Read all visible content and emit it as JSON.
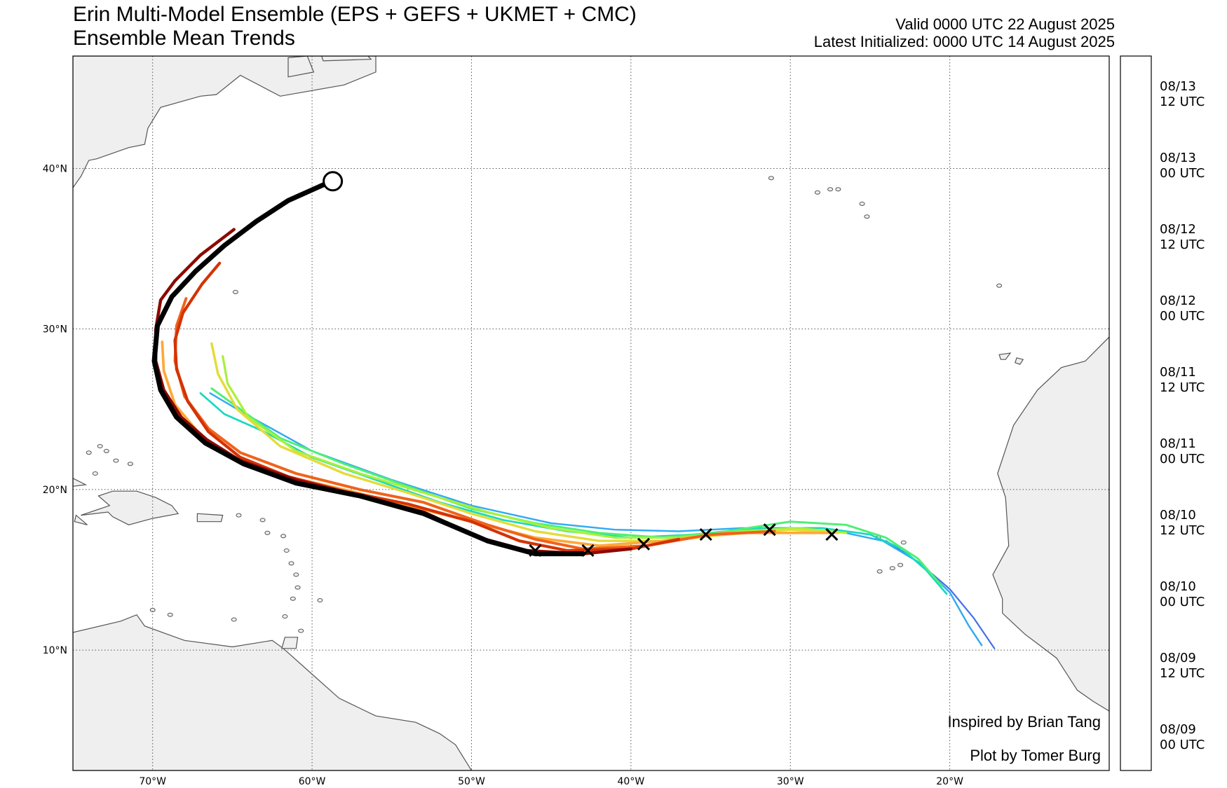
{
  "header": {
    "title": "Erin Multi-Model Ensemble (EPS + GEFS + UKMET + CMC)",
    "subtitle": "Ensemble Mean Trends",
    "valid": "Valid 0000 UTC 22 August 2025",
    "initialized": "Latest Initialized: 0000 UTC 14 August 2025"
  },
  "map": {
    "lon_range": [
      -75,
      -10
    ],
    "lat_range": [
      2.5,
      47
    ],
    "lon_ticks": [
      {
        "value": -70,
        "label": "70°W"
      },
      {
        "value": -60,
        "label": "60°W"
      },
      {
        "value": -50,
        "label": "50°W"
      },
      {
        "value": -40,
        "label": "40°W"
      },
      {
        "value": -30,
        "label": "30°W"
      },
      {
        "value": -20,
        "label": "20°W"
      }
    ],
    "lat_ticks": [
      {
        "value": 10,
        "label": "10°N"
      },
      {
        "value": 20,
        "label": "20°N"
      },
      {
        "value": 30,
        "label": "30°N"
      },
      {
        "value": 40,
        "label": "40°N"
      }
    ],
    "gridlines": "dotted",
    "land_color": "#efefef",
    "coast_color": "#555555",
    "ocean_color": "#ffffff",
    "land": [
      {
        "name": "north-america",
        "points": [
          [
            -75,
            47
          ],
          [
            -56,
            47
          ],
          [
            -56,
            46
          ],
          [
            -58,
            45.2
          ],
          [
            -62,
            44.5
          ],
          [
            -64.5,
            45.8
          ],
          [
            -66,
            44.6
          ],
          [
            -67,
            44.5
          ],
          [
            -69.5,
            43.8
          ],
          [
            -70.3,
            42.5
          ],
          [
            -70.5,
            41.5
          ],
          [
            -71.5,
            41.3
          ],
          [
            -73.5,
            40.6
          ],
          [
            -74,
            40.5
          ],
          [
            -74.5,
            39.5
          ],
          [
            -75,
            38.8
          ]
        ]
      },
      {
        "name": "south-america",
        "points": [
          [
            -75,
            11.1
          ],
          [
            -72,
            11.8
          ],
          [
            -71,
            12.2
          ],
          [
            -70.5,
            11.5
          ],
          [
            -68,
            10.6
          ],
          [
            -65,
            10.2
          ],
          [
            -62.5,
            10.6
          ],
          [
            -61.8,
            10.1
          ],
          [
            -60,
            8.5
          ],
          [
            -58.3,
            7
          ],
          [
            -56,
            5.9
          ],
          [
            -53.5,
            5.5
          ],
          [
            -52,
            4.8
          ],
          [
            -51,
            4.1
          ],
          [
            -50,
            2.5
          ],
          [
            -75,
            2.5
          ]
        ]
      },
      {
        "name": "africa",
        "points": [
          [
            -10,
            29.5
          ],
          [
            -11.5,
            28
          ],
          [
            -13,
            27.6
          ],
          [
            -14.5,
            26.2
          ],
          [
            -16,
            24
          ],
          [
            -17,
            21
          ],
          [
            -16.5,
            19.5
          ],
          [
            -16.3,
            16.5
          ],
          [
            -17.3,
            14.7
          ],
          [
            -16.7,
            13.2
          ],
          [
            -16.7,
            12.3
          ],
          [
            -15.3,
            11
          ],
          [
            -14.5,
            10.4
          ],
          [
            -13.3,
            9.5
          ],
          [
            -12,
            7.5
          ],
          [
            -11,
            6.8
          ],
          [
            -10,
            6.2
          ]
        ]
      },
      {
        "name": "cuba",
        "points": [
          [
            -75,
            20.2
          ],
          [
            -74.2,
            20.3
          ],
          [
            -75,
            20.7
          ]
        ]
      },
      {
        "name": "hispaniola",
        "points": [
          [
            -74.5,
            18.4
          ],
          [
            -72.8,
            18.6
          ],
          [
            -72.5,
            18.3
          ],
          [
            -71.5,
            17.8
          ],
          [
            -70,
            18.2
          ],
          [
            -68.4,
            18.5
          ],
          [
            -68.8,
            19
          ],
          [
            -69.8,
            19.5
          ],
          [
            -71,
            19.9
          ],
          [
            -72.5,
            19.9
          ],
          [
            -73.4,
            19.6
          ],
          [
            -72.7,
            19
          ]
        ]
      },
      {
        "name": "puerto-rico",
        "points": [
          [
            -67.2,
            18.5
          ],
          [
            -65.6,
            18.4
          ],
          [
            -65.7,
            18
          ],
          [
            -67.2,
            18
          ]
        ]
      },
      {
        "name": "jamaica",
        "points": [
          [
            -74.9,
            18
          ],
          [
            -74.1,
            17.8
          ],
          [
            -74.8,
            18.4
          ]
        ]
      },
      {
        "name": "trinidad",
        "points": [
          [
            -61.9,
            10.1
          ],
          [
            -61,
            10.1
          ],
          [
            -60.9,
            10.8
          ],
          [
            -61.7,
            10.8
          ]
        ]
      },
      {
        "name": "newfoundland",
        "points": [
          [
            -59.4,
            47
          ],
          [
            -56.5,
            47
          ],
          [
            -56.3,
            46.8
          ],
          [
            -59.3,
            46.7
          ]
        ]
      },
      {
        "name": "cape-breton",
        "points": [
          [
            -61.5,
            45.7
          ],
          [
            -59.9,
            46
          ],
          [
            -60.3,
            47
          ],
          [
            -61.5,
            46.9
          ]
        ]
      },
      {
        "name": "gran-canaria",
        "points": [
          [
            -15.8,
            28.2
          ],
          [
            -15.4,
            28.1
          ],
          [
            -15.6,
            27.8
          ],
          [
            -15.9,
            27.9
          ]
        ]
      },
      {
        "name": "tenerife",
        "points": [
          [
            -16.9,
            28.4
          ],
          [
            -16.2,
            28.5
          ],
          [
            -16.5,
            28.1
          ],
          [
            -16.8,
            28.1
          ]
        ]
      }
    ],
    "small_islands": [
      [
        -64.8,
        32.3
      ],
      [
        -31.2,
        39.4
      ],
      [
        -28.3,
        38.5
      ],
      [
        -27.5,
        38.7
      ],
      [
        -27,
        38.7
      ],
      [
        -25.5,
        37.8
      ],
      [
        -25.2,
        37.0
      ],
      [
        -16.9,
        32.7
      ],
      [
        -24.5,
        17.0
      ],
      [
        -22.9,
        16.7
      ],
      [
        -23.6,
        15.1
      ],
      [
        -24.4,
        14.9
      ],
      [
        -23.1,
        15.3
      ],
      [
        -61.8,
        17.1
      ],
      [
        -61.6,
        16.2
      ],
      [
        -61.3,
        15.4
      ],
      [
        -61.0,
        14.7
      ],
      [
        -60.9,
        13.9
      ],
      [
        -61.2,
        13.2
      ],
      [
        -59.5,
        13.1
      ],
      [
        -61.7,
        12.1
      ],
      [
        -60.7,
        11.2
      ],
      [
        -62.8,
        17.3
      ],
      [
        -63.1,
        18.1
      ],
      [
        -64.6,
        18.4
      ],
      [
        -68.9,
        12.2
      ],
      [
        -70.0,
        12.5
      ],
      [
        -64.9,
        11.9
      ],
      [
        -72.3,
        21.8
      ],
      [
        -71.4,
        21.6
      ],
      [
        -73.6,
        21.0
      ],
      [
        -72.9,
        22.4
      ],
      [
        -73.3,
        22.7
      ],
      [
        -74.0,
        22.3
      ]
    ]
  },
  "track_colors": [
    {
      "time": "08/09 00 UTC",
      "color": "#4570e8"
    },
    {
      "time": "08/09 12 UTC",
      "color": "#33aaf2"
    },
    {
      "time": "08/10 00 UTC",
      "color": "#19d9c0"
    },
    {
      "time": "08/10 12 UTC",
      "color": "#4df074"
    },
    {
      "time": "08/11 00 UTC",
      "color": "#a8f03c"
    },
    {
      "time": "08/11 12 UTC",
      "color": "#e3dc3a"
    },
    {
      "time": "08/12 00 UTC",
      "color": "#ffa838"
    },
    {
      "time": "08/12 12 UTC",
      "color": "#f1621b"
    },
    {
      "time": "08/13 00 UTC",
      "color": "#d33306"
    },
    {
      "time": "08/13 12 UTC",
      "color": "#8b0a00"
    }
  ],
  "colorbar": {
    "labels": [
      {
        "date": "08/09",
        "hour": "00 UTC"
      },
      {
        "date": "08/09",
        "hour": "12 UTC"
      },
      {
        "date": "08/10",
        "hour": "00 UTC"
      },
      {
        "date": "08/10",
        "hour": "12 UTC"
      },
      {
        "date": "08/11",
        "hour": "00 UTC"
      },
      {
        "date": "08/11",
        "hour": "12 UTC"
      },
      {
        "date": "08/12",
        "hour": "00 UTC"
      },
      {
        "date": "08/12",
        "hour": "12 UTC"
      },
      {
        "date": "08/13",
        "hour": "00 UTC"
      },
      {
        "date": "08/13",
        "hour": "12 UTC"
      }
    ]
  },
  "tracks": [
    {
      "init": "08/09 00 UTC",
      "color": "#4570e8",
      "points": [
        [
          -24,
          16.8
        ],
        [
          -22,
          15.5
        ],
        [
          -20,
          13.8
        ],
        [
          -18.5,
          12.0
        ],
        [
          -17.2,
          10.1
        ]
      ]
    },
    {
      "init": "08/09 12 UTC",
      "color": "#33aaf2",
      "points": [
        [
          -66.4,
          26.0
        ],
        [
          -64,
          24.6
        ],
        [
          -60,
          22.4
        ],
        [
          -55,
          20.6
        ],
        [
          -50,
          19.0
        ],
        [
          -45,
          17.9
        ],
        [
          -41,
          17.5
        ],
        [
          -37,
          17.4
        ],
        [
          -33,
          17.6
        ],
        [
          -30,
          17.5
        ],
        [
          -27,
          17.4
        ],
        [
          -24.2,
          16.8
        ],
        [
          -22,
          15.5
        ],
        [
          -20,
          13.6
        ],
        [
          -18.8,
          11.5
        ],
        [
          -18.0,
          10.3
        ]
      ]
    },
    {
      "init": "08/10 00 UTC",
      "color": "#19d9c0",
      "points": [
        [
          -67.0,
          26.0
        ],
        [
          -65.5,
          24.7
        ],
        [
          -63,
          23.6
        ],
        [
          -60,
          22.0
        ],
        [
          -56,
          20.6
        ],
        [
          -52,
          19.2
        ],
        [
          -48,
          18.1
        ],
        [
          -44,
          17.4
        ],
        [
          -40,
          17.0
        ],
        [
          -36,
          17.2
        ],
        [
          -32,
          17.6
        ],
        [
          -28,
          17.6
        ],
        [
          -25,
          17.2
        ],
        [
          -23,
          16.3
        ],
        [
          -21.5,
          15.0
        ],
        [
          -20.2,
          13.5
        ]
      ]
    },
    {
      "init": "08/10 12 UTC",
      "color": "#4df074",
      "points": [
        [
          -66.3,
          26.3
        ],
        [
          -64.5,
          25
        ],
        [
          -62,
          23.2
        ],
        [
          -58,
          21.6
        ],
        [
          -54,
          20.2
        ],
        [
          -50,
          18.8
        ],
        [
          -46,
          17.9
        ],
        [
          -42,
          17.3
        ],
        [
          -38,
          17.0
        ],
        [
          -34,
          17.4
        ],
        [
          -30,
          18.0
        ],
        [
          -26.5,
          17.8
        ],
        [
          -24,
          17.0
        ],
        [
          -22,
          15.7
        ],
        [
          -20.5,
          14.0
        ]
      ]
    },
    {
      "init": "08/11 00 UTC",
      "color": "#a8f03c",
      "points": [
        [
          -65.6,
          28.3
        ],
        [
          -65.3,
          26.6
        ],
        [
          -64,
          24.5
        ],
        [
          -61,
          22.4
        ],
        [
          -57,
          21.0
        ],
        [
          -53,
          19.8
        ],
        [
          -49,
          18.6
        ],
        [
          -45,
          17.6
        ],
        [
          -41,
          17.0
        ],
        [
          -37,
          17.0
        ],
        [
          -33,
          17.4
        ],
        [
          -29.5,
          17.6
        ],
        [
          -26.5,
          17.3
        ]
      ]
    },
    {
      "init": "08/11 12 UTC",
      "color": "#e3dc3a",
      "points": [
        [
          -66.3,
          29.1
        ],
        [
          -65.9,
          27.2
        ],
        [
          -64.7,
          25.0
        ],
        [
          -62,
          22.7
        ],
        [
          -58,
          21.0
        ],
        [
          -54,
          19.8
        ],
        [
          -50,
          18.5
        ],
        [
          -46,
          17.4
        ],
        [
          -42,
          16.8
        ],
        [
          -38,
          16.8
        ],
        [
          -34,
          17.2
        ],
        [
          -30,
          17.5
        ],
        [
          -27,
          17.3
        ]
      ]
    },
    {
      "init": "08/12 00 UTC",
      "color": "#ffa838",
      "points": [
        [
          -69.4,
          29.2
        ],
        [
          -69.3,
          27.4
        ],
        [
          -68.6,
          25.3
        ],
        [
          -67,
          23.4
        ],
        [
          -65,
          22.0
        ],
        [
          -62,
          20.9
        ],
        [
          -58,
          20.0
        ],
        [
          -54,
          19.0
        ],
        [
          -50,
          18.0
        ],
        [
          -46,
          17.0
        ],
        [
          -42,
          16.5
        ],
        [
          -38,
          16.8
        ],
        [
          -34,
          17.3
        ],
        [
          -30,
          17.3
        ],
        [
          -27.5,
          17.3
        ]
      ]
    },
    {
      "init": "08/12 12 UTC",
      "color": "#f1621b",
      "points": [
        [
          -67.9,
          31.9
        ],
        [
          -68.5,
          30.2
        ],
        [
          -68.6,
          28.0
        ],
        [
          -68,
          25.8
        ],
        [
          -66.5,
          23.8
        ],
        [
          -64.5,
          22.3
        ],
        [
          -61,
          21.0
        ],
        [
          -57,
          20.0
        ],
        [
          -53,
          19.2
        ],
        [
          -49,
          17.8
        ],
        [
          -46,
          16.9
        ],
        [
          -43,
          16.3
        ],
        [
          -39,
          16.5
        ],
        [
          -35,
          17.2
        ],
        [
          -31,
          17.4
        ]
      ]
    },
    {
      "init": "08/13 00 UTC",
      "color": "#d33306",
      "points": [
        [
          -65.8,
          34.1
        ],
        [
          -66.9,
          32.8
        ],
        [
          -68.1,
          31.0
        ],
        [
          -68.6,
          29.3
        ],
        [
          -68.5,
          27.5
        ],
        [
          -67.8,
          25.5
        ],
        [
          -66.5,
          23.6
        ],
        [
          -64.5,
          22.0
        ],
        [
          -61.5,
          20.8
        ],
        [
          -58,
          19.9
        ],
        [
          -54,
          19.1
        ],
        [
          -50,
          18.0
        ],
        [
          -47,
          16.8
        ],
        [
          -44,
          16.2
        ],
        [
          -40,
          16.3
        ],
        [
          -37,
          16.9
        ]
      ]
    },
    {
      "init": "08/13 12 UTC",
      "color": "#8b0a00",
      "points": [
        [
          -64.9,
          36.2
        ],
        [
          -67,
          34.6
        ],
        [
          -68.6,
          33.0
        ],
        [
          -69.5,
          31.8
        ],
        [
          -69.8,
          30.0
        ],
        [
          -69.8,
          28.0
        ],
        [
          -69.3,
          26.2
        ],
        [
          -68.2,
          24.5
        ],
        [
          -66.6,
          23.1
        ],
        [
          -64.5,
          21.8
        ],
        [
          -61,
          20.6
        ],
        [
          -57,
          19.6
        ],
        [
          -53,
          18.6
        ],
        [
          -49.5,
          17.0
        ],
        [
          -46.5,
          16.2
        ],
        [
          -43,
          16.0
        ],
        [
          -40,
          16.3
        ]
      ]
    }
  ],
  "ensemble_mean": {
    "color": "#000000",
    "points": [
      [
        -58.8,
        39.2
      ],
      [
        -61.5,
        38.0
      ],
      [
        -63.5,
        36.7
      ],
      [
        -65.5,
        35.2
      ],
      [
        -67.3,
        33.6
      ],
      [
        -68.8,
        32.0
      ],
      [
        -69.7,
        30.2
      ],
      [
        -69.9,
        28.0
      ],
      [
        -69.5,
        26.2
      ],
      [
        -68.5,
        24.5
      ],
      [
        -66.7,
        22.9
      ],
      [
        -64.3,
        21.6
      ],
      [
        -61,
        20.4
      ],
      [
        -57,
        19.6
      ],
      [
        -53,
        18.5
      ],
      [
        -49,
        16.8
      ],
      [
        -46,
        16.0
      ],
      [
        -43,
        16.0
      ]
    ]
  },
  "current_position": [
    -58.7,
    39.2
  ],
  "x_markers": [
    [
      -46.0,
      16.2
    ],
    [
      -42.7,
      16.2
    ],
    [
      -39.2,
      16.6
    ],
    [
      -35.3,
      17.2
    ],
    [
      -31.3,
      17.5
    ],
    [
      -27.4,
      17.2
    ]
  ],
  "credits": {
    "inspired": "Inspired by Brian Tang",
    "plot": "Plot by Tomer Burg"
  }
}
